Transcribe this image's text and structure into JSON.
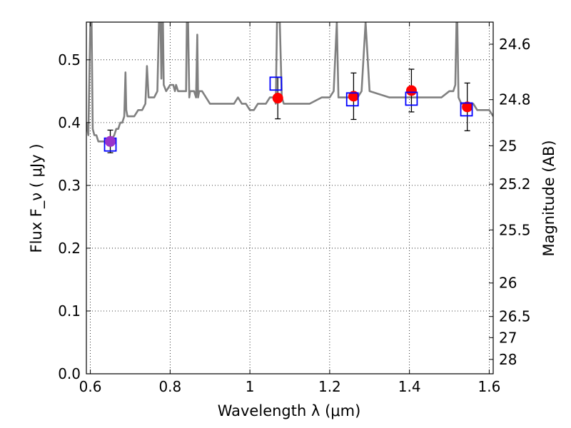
{
  "chart_data": {
    "type": "scatter",
    "title": "",
    "xlabel": "Wavelength  λ (μm)",
    "ylabel": "Flux  F_ν  ( μJy )",
    "y2label": "Magnitude (AB)",
    "xlim": [
      0.59,
      1.61
    ],
    "ylim": [
      0.0,
      0.56
    ],
    "grid": true,
    "x_ticks": [
      0.6,
      0.8,
      1.0,
      1.2,
      1.4,
      1.6
    ],
    "x_tick_labels": [
      "0.6",
      "0.8",
      "1",
      "1.2",
      "1.4",
      "1.6"
    ],
    "y_ticks": [
      0.0,
      0.1,
      0.2,
      0.3,
      0.4,
      0.5
    ],
    "y_tick_labels": [
      "0.0",
      "0.1",
      "0.2",
      "0.3",
      "0.4",
      "0.5"
    ],
    "y2_ticks": [
      24.6,
      24.8,
      25,
      25.2,
      25.5,
      26,
      26.5,
      27,
      28
    ],
    "y2_tick_labels": [
      "24.6",
      "24.8",
      "25",
      "25.2",
      "25.5",
      "26",
      "26.5",
      "27",
      "28"
    ],
    "series": [
      {
        "kind": "line",
        "color": "#808080",
        "x": [
          0.59,
          0.595,
          0.6,
          0.603,
          0.606,
          0.61,
          0.615,
          0.62,
          0.63,
          0.64,
          0.65,
          0.66,
          0.665,
          0.67,
          0.675,
          0.68,
          0.685,
          0.688,
          0.69,
          0.693,
          0.7,
          0.71,
          0.72,
          0.73,
          0.738,
          0.742,
          0.746,
          0.75,
          0.76,
          0.768,
          0.772,
          0.776,
          0.778,
          0.78,
          0.782,
          0.784,
          0.79,
          0.8,
          0.805,
          0.808,
          0.812,
          0.815,
          0.82,
          0.83,
          0.84,
          0.842,
          0.845,
          0.848,
          0.85,
          0.855,
          0.86,
          0.865,
          0.868,
          0.87,
          0.873,
          0.88,
          0.89,
          0.9,
          0.92,
          0.94,
          0.96,
          0.97,
          0.98,
          0.99,
          1.0,
          1.01,
          1.02,
          1.03,
          1.04,
          1.05,
          1.06,
          1.065,
          1.068,
          1.07,
          1.072,
          1.075,
          1.08,
          1.085,
          1.09,
          1.1,
          1.12,
          1.15,
          1.18,
          1.2,
          1.21,
          1.218,
          1.222,
          1.226,
          1.23,
          1.24,
          1.25,
          1.26,
          1.27,
          1.28,
          1.29,
          1.3,
          1.35,
          1.4,
          1.45,
          1.48,
          1.5,
          1.51,
          1.515,
          1.518,
          1.52,
          1.523,
          1.53,
          1.54,
          1.55,
          1.56,
          1.57,
          1.58,
          1.59,
          1.6,
          1.61
        ],
        "y": [
          0.4,
          0.38,
          0.56,
          0.56,
          0.39,
          0.38,
          0.38,
          0.37,
          0.37,
          0.37,
          0.37,
          0.38,
          0.39,
          0.39,
          0.4,
          0.4,
          0.41,
          0.48,
          0.42,
          0.41,
          0.41,
          0.41,
          0.42,
          0.42,
          0.43,
          0.49,
          0.44,
          0.44,
          0.44,
          0.45,
          0.56,
          0.56,
          0.47,
          0.56,
          0.56,
          0.46,
          0.45,
          0.46,
          0.46,
          0.46,
          0.45,
          0.46,
          0.45,
          0.45,
          0.45,
          0.56,
          0.56,
          0.44,
          0.45,
          0.45,
          0.45,
          0.44,
          0.54,
          0.44,
          0.45,
          0.45,
          0.44,
          0.43,
          0.43,
          0.43,
          0.43,
          0.44,
          0.43,
          0.43,
          0.42,
          0.42,
          0.43,
          0.43,
          0.43,
          0.44,
          0.44,
          0.43,
          0.56,
          0.56,
          0.56,
          0.56,
          0.44,
          0.43,
          0.43,
          0.43,
          0.43,
          0.43,
          0.44,
          0.44,
          0.45,
          0.56,
          0.44,
          0.44,
          0.44,
          0.44,
          0.44,
          0.44,
          0.44,
          0.45,
          0.56,
          0.45,
          0.44,
          0.44,
          0.44,
          0.44,
          0.45,
          0.45,
          0.46,
          0.56,
          0.56,
          0.44,
          0.43,
          0.43,
          0.43,
          0.43,
          0.42,
          0.42,
          0.42,
          0.42,
          0.41
        ]
      },
      {
        "kind": "points",
        "marker": "circle",
        "color": "#ff0000",
        "x": [
          0.65,
          1.07,
          1.26,
          1.405,
          1.545
        ],
        "y": [
          0.37,
          0.439,
          0.442,
          0.451,
          0.425
        ],
        "yerr": [
          0.018,
          0.033,
          0.037,
          0.034,
          0.038
        ]
      },
      {
        "kind": "points",
        "marker": "square",
        "color": "#0000ff",
        "x": [
          0.65,
          1.065,
          1.257,
          1.405,
          1.543
        ],
        "y": [
          0.365,
          0.462,
          0.437,
          0.438,
          0.421
        ]
      },
      {
        "kind": "points",
        "marker": "circle",
        "color": "#9933cc",
        "x": [
          0.65
        ],
        "y": [
          0.37
        ]
      }
    ]
  }
}
